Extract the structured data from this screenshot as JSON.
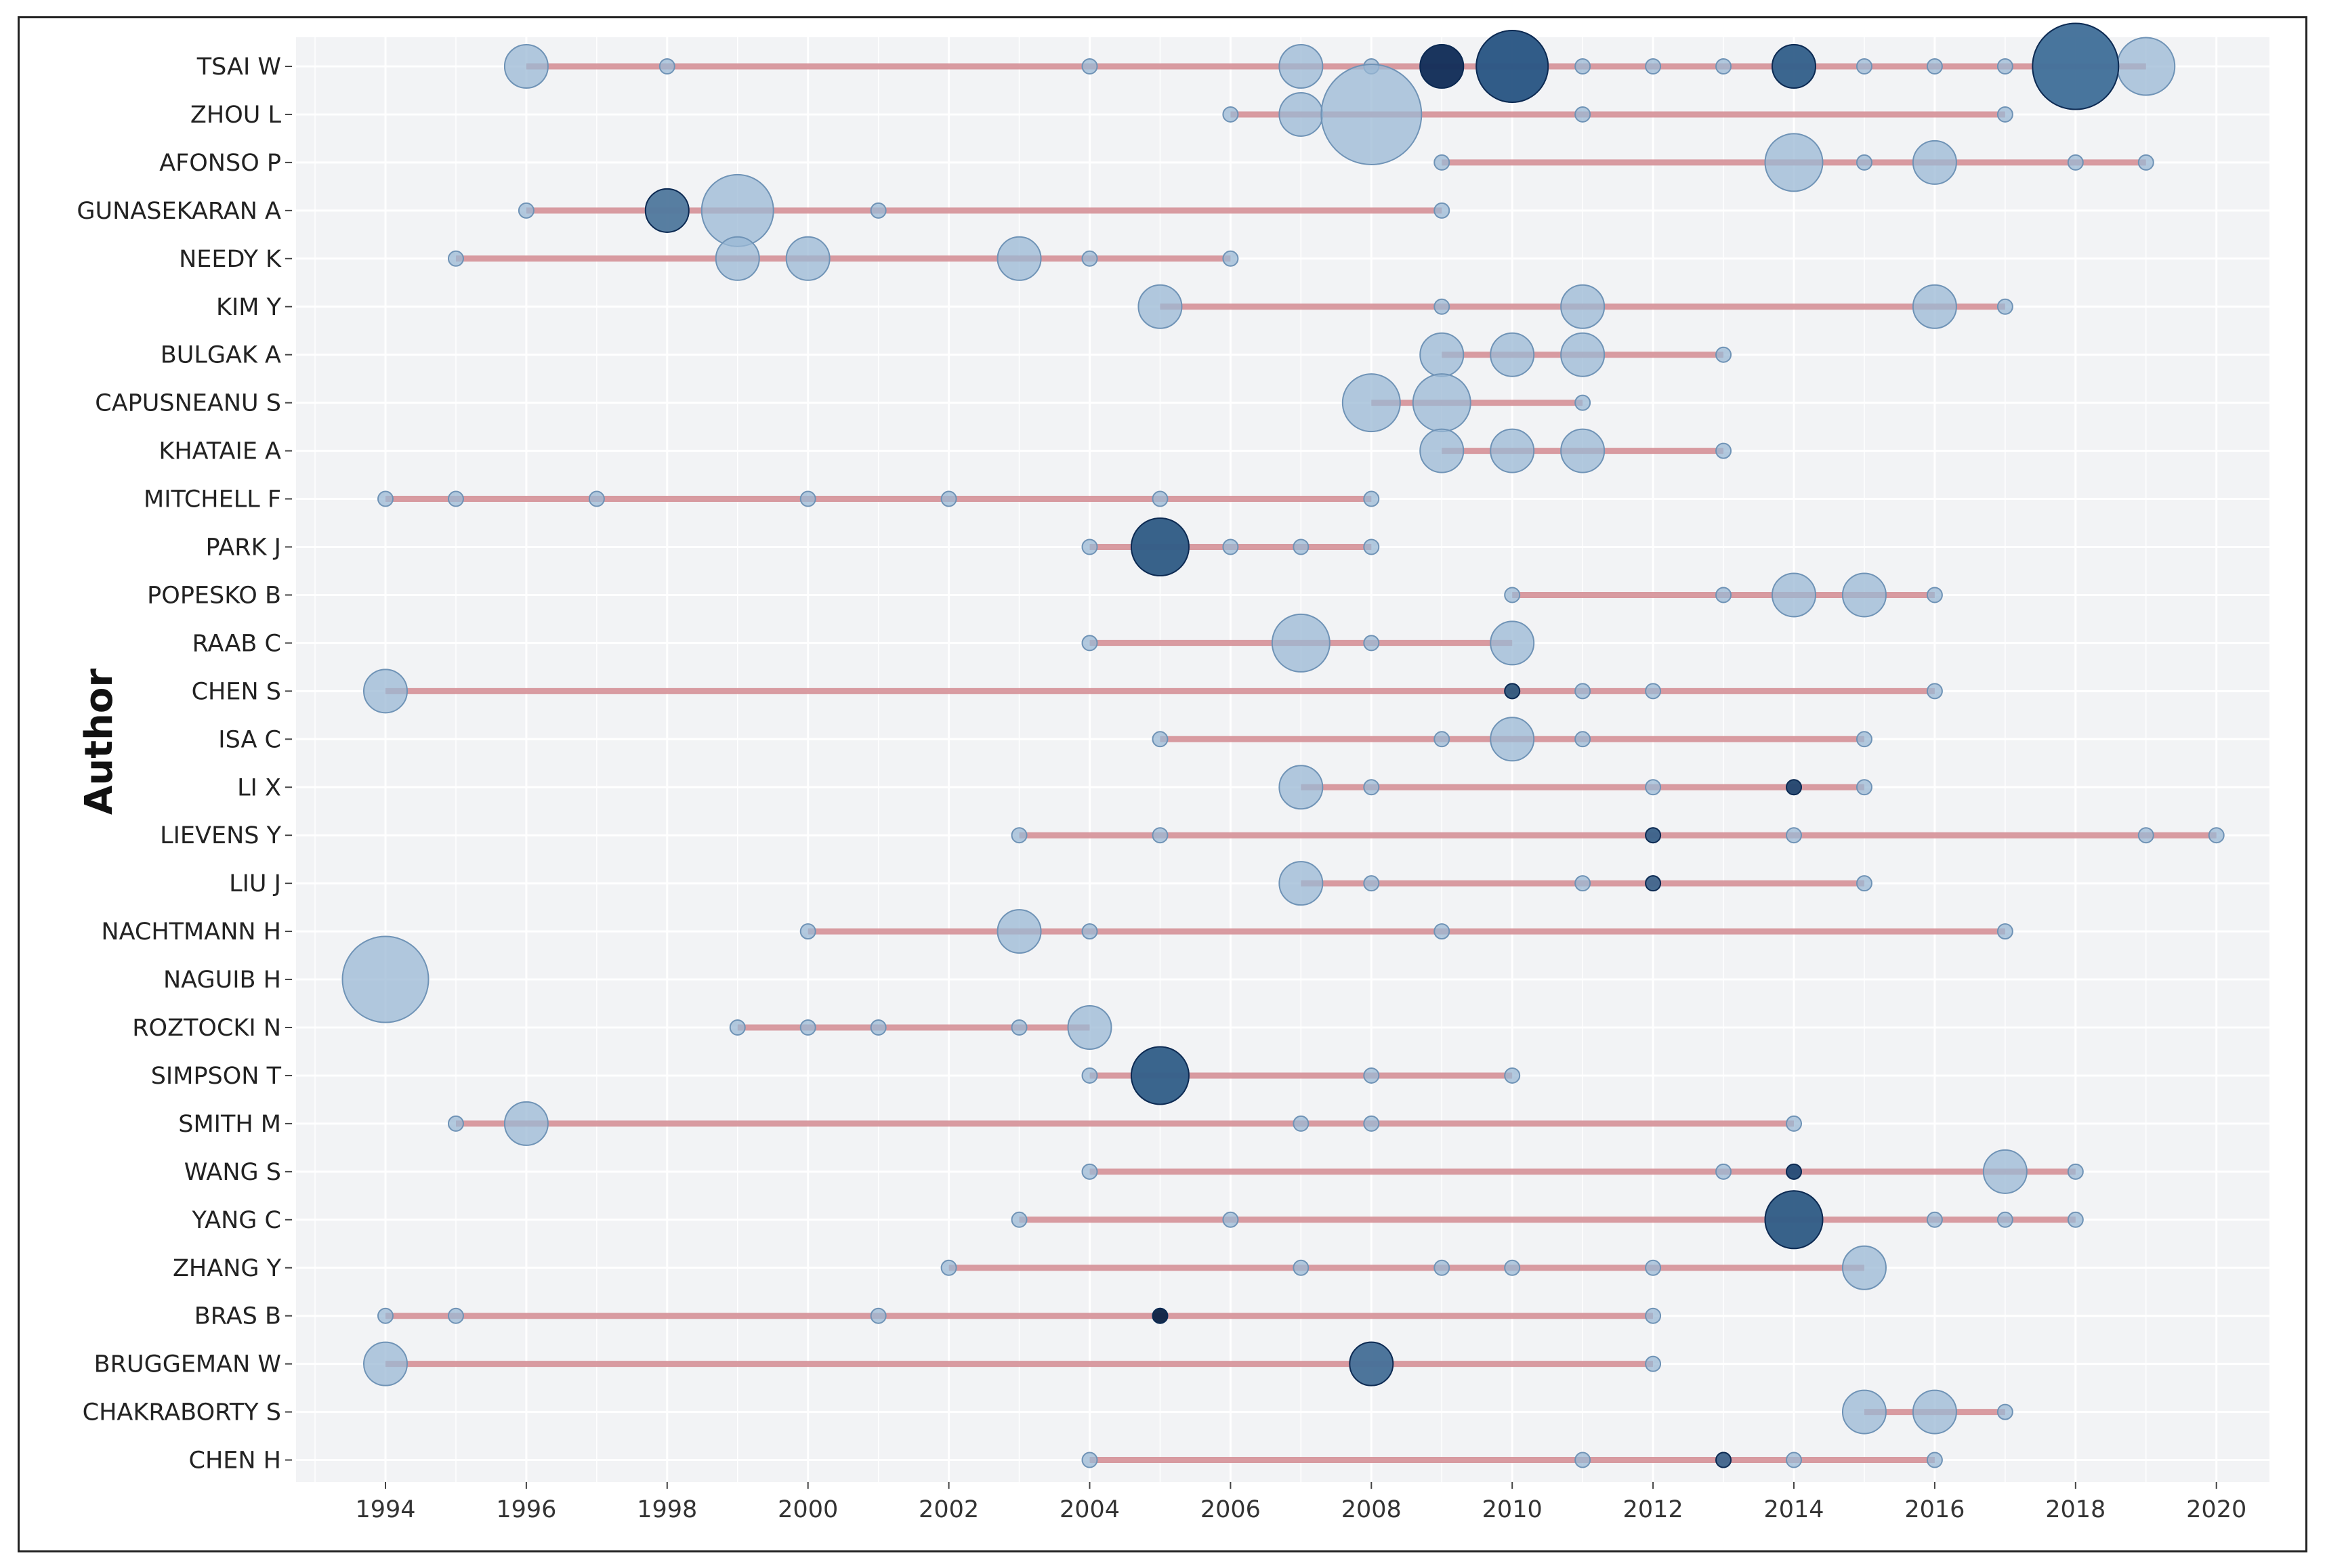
{
  "chart_data": {
    "type": "scatter",
    "ylabel": "Author",
    "xlabel": "",
    "xlim": [
      1992.6,
      2020.9
    ],
    "x_ticks": [
      1994,
      1996,
      1998,
      2000,
      2002,
      2004,
      2006,
      2008,
      2010,
      2012,
      2014,
      2016,
      2018,
      2020
    ],
    "grid": true,
    "authors": [
      {
        "name": "TSAI W",
        "points": [
          [
            1996,
            3
          ],
          [
            1998,
            1
          ],
          [
            2004,
            1
          ],
          [
            2007,
            3
          ],
          [
            2008,
            1
          ],
          [
            2009,
            3
          ],
          [
            2010,
            5
          ],
          [
            2011,
            1
          ],
          [
            2012,
            1
          ],
          [
            2013,
            1
          ],
          [
            2014,
            3
          ],
          [
            2015,
            1
          ],
          [
            2016,
            1
          ],
          [
            2017,
            1
          ],
          [
            2018,
            6
          ],
          [
            2019,
            4
          ]
        ]
      },
      {
        "name": "ZHOU L",
        "points": [
          [
            2006,
            1
          ],
          [
            2007,
            3
          ],
          [
            2008,
            7
          ],
          [
            2011,
            1
          ],
          [
            2017,
            1
          ]
        ]
      },
      {
        "name": "AFONSO P",
        "points": [
          [
            2009,
            1
          ],
          [
            2014,
            4
          ],
          [
            2015,
            1
          ],
          [
            2016,
            3
          ],
          [
            2018,
            1
          ],
          [
            2019,
            1
          ]
        ]
      },
      {
        "name": "GUNASEKARAN A",
        "points": [
          [
            1996,
            1
          ],
          [
            1998,
            3
          ],
          [
            1999,
            5
          ],
          [
            2001,
            1
          ],
          [
            2009,
            1
          ]
        ]
      },
      {
        "name": "NEEDY K",
        "points": [
          [
            1995,
            1
          ],
          [
            1999,
            3
          ],
          [
            2000,
            3
          ],
          [
            2003,
            3
          ],
          [
            2004,
            1
          ],
          [
            2006,
            1
          ]
        ]
      },
      {
        "name": "KIM Y",
        "points": [
          [
            2005,
            3
          ],
          [
            2009,
            1
          ],
          [
            2011,
            3
          ],
          [
            2016,
            3
          ],
          [
            2017,
            1
          ]
        ]
      },
      {
        "name": "BULGAK A",
        "points": [
          [
            2009,
            3
          ],
          [
            2010,
            3
          ],
          [
            2011,
            3
          ],
          [
            2013,
            1
          ]
        ]
      },
      {
        "name": "CAPUSNEANU S",
        "points": [
          [
            2008,
            4
          ],
          [
            2009,
            4
          ],
          [
            2011,
            1
          ]
        ]
      },
      {
        "name": "KHATAIE A",
        "points": [
          [
            2009,
            3
          ],
          [
            2010,
            3
          ],
          [
            2011,
            3
          ],
          [
            2013,
            1
          ]
        ]
      },
      {
        "name": "MITCHELL F",
        "points": [
          [
            1994,
            1
          ],
          [
            1995,
            1
          ],
          [
            1997,
            1
          ],
          [
            2000,
            1
          ],
          [
            2002,
            1
          ],
          [
            2005,
            1
          ],
          [
            2008,
            1
          ]
        ]
      },
      {
        "name": "PARK J",
        "points": [
          [
            2004,
            1
          ],
          [
            2005,
            4
          ],
          [
            2006,
            1
          ],
          [
            2007,
            1
          ],
          [
            2008,
            1
          ]
        ]
      },
      {
        "name": "POPESKO B",
        "points": [
          [
            2010,
            1
          ],
          [
            2013,
            1
          ],
          [
            2014,
            3
          ],
          [
            2015,
            3
          ],
          [
            2016,
            1
          ]
        ]
      },
      {
        "name": "RAAB C",
        "points": [
          [
            2004,
            1
          ],
          [
            2007,
            4
          ],
          [
            2008,
            1
          ],
          [
            2010,
            3
          ]
        ]
      },
      {
        "name": "CHEN S",
        "points": [
          [
            1994,
            3
          ],
          [
            2010,
            1
          ],
          [
            2011,
            1
          ],
          [
            2012,
            1
          ],
          [
            2016,
            1
          ]
        ]
      },
      {
        "name": "ISA C",
        "points": [
          [
            2005,
            1
          ],
          [
            2009,
            1
          ],
          [
            2010,
            3
          ],
          [
            2011,
            1
          ],
          [
            2015,
            1
          ]
        ]
      },
      {
        "name": "LI X",
        "points": [
          [
            2007,
            3
          ],
          [
            2008,
            1
          ],
          [
            2012,
            1
          ],
          [
            2014,
            1
          ],
          [
            2015,
            1
          ]
        ]
      },
      {
        "name": "LIEVENS Y",
        "points": [
          [
            2003,
            1
          ],
          [
            2005,
            1
          ],
          [
            2012,
            1
          ],
          [
            2014,
            1
          ],
          [
            2019,
            1
          ],
          [
            2020,
            1
          ]
        ]
      },
      {
        "name": "LIU J",
        "points": [
          [
            2007,
            3
          ],
          [
            2008,
            1
          ],
          [
            2011,
            1
          ],
          [
            2012,
            1
          ],
          [
            2015,
            1
          ]
        ]
      },
      {
        "name": "NACHTMANN H",
        "points": [
          [
            2000,
            1
          ],
          [
            2003,
            3
          ],
          [
            2004,
            1
          ],
          [
            2009,
            1
          ],
          [
            2017,
            1
          ]
        ]
      },
      {
        "name": "NAGUIB H",
        "points": [
          [
            1994,
            6
          ]
        ]
      },
      {
        "name": "ROZTOCKI N",
        "points": [
          [
            1999,
            1
          ],
          [
            2000,
            1
          ],
          [
            2001,
            1
          ],
          [
            2003,
            1
          ],
          [
            2004,
            3
          ]
        ]
      },
      {
        "name": "SIMPSON T",
        "points": [
          [
            2004,
            1
          ],
          [
            2005,
            4
          ],
          [
            2008,
            1
          ],
          [
            2010,
            1
          ]
        ]
      },
      {
        "name": "SMITH M",
        "points": [
          [
            1995,
            1
          ],
          [
            1996,
            3
          ],
          [
            2007,
            1
          ],
          [
            2008,
            1
          ],
          [
            2014,
            1
          ]
        ]
      },
      {
        "name": "WANG S",
        "points": [
          [
            2004,
            1
          ],
          [
            2013,
            1
          ],
          [
            2014,
            1
          ],
          [
            2017,
            3
          ],
          [
            2018,
            1
          ]
        ]
      },
      {
        "name": "YANG C",
        "points": [
          [
            2003,
            1
          ],
          [
            2006,
            1
          ],
          [
            2014,
            4
          ],
          [
            2016,
            1
          ],
          [
            2017,
            1
          ],
          [
            2018,
            1
          ]
        ]
      },
      {
        "name": "ZHANG Y",
        "points": [
          [
            2002,
            1
          ],
          [
            2007,
            1
          ],
          [
            2009,
            1
          ],
          [
            2010,
            1
          ],
          [
            2012,
            1
          ],
          [
            2015,
            3
          ]
        ]
      },
      {
        "name": "BRAS B",
        "points": [
          [
            1994,
            1
          ],
          [
            1995,
            1
          ],
          [
            2001,
            1
          ],
          [
            2005,
            1
          ],
          [
            2012,
            1
          ]
        ]
      },
      {
        "name": "BRUGGEMAN W",
        "points": [
          [
            1994,
            3
          ],
          [
            2008,
            3
          ],
          [
            2012,
            1
          ]
        ]
      },
      {
        "name": "CHAKRABORTY S",
        "points": [
          [
            2015,
            3
          ],
          [
            2016,
            3
          ],
          [
            2017,
            1
          ]
        ]
      },
      {
        "name": "CHEN H",
        "points": [
          [
            2004,
            1
          ],
          [
            2011,
            1
          ],
          [
            2013,
            1
          ],
          [
            2014,
            1
          ],
          [
            2016,
            1
          ]
        ]
      }
    ],
    "colors": {
      "panel": "#f2f3f5",
      "grid": "#ffffff",
      "segment": "#d28a90",
      "point_light": "#9ab8d4",
      "point_dark": "#08204a"
    }
  }
}
